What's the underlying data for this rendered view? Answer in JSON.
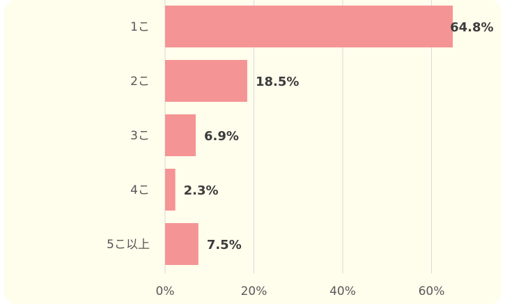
{
  "chart_data": {
    "type": "bar",
    "orientation": "horizontal",
    "categories": [
      "1こ",
      "2こ",
      "3こ",
      "4こ",
      "5こ以上"
    ],
    "values": [
      64.8,
      18.5,
      6.9,
      2.3,
      7.5
    ],
    "value_labels": [
      "64.8%",
      "18.5%",
      "6.9%",
      "2.3%",
      "7.5%"
    ],
    "x_ticks": [
      "0%",
      "20%",
      "40%",
      "60%"
    ],
    "xlim": [
      0,
      75
    ],
    "grid": true,
    "colors": {
      "bar": "#f59494",
      "grid": "#d9d9d9",
      "background": "#fffdec"
    }
  }
}
